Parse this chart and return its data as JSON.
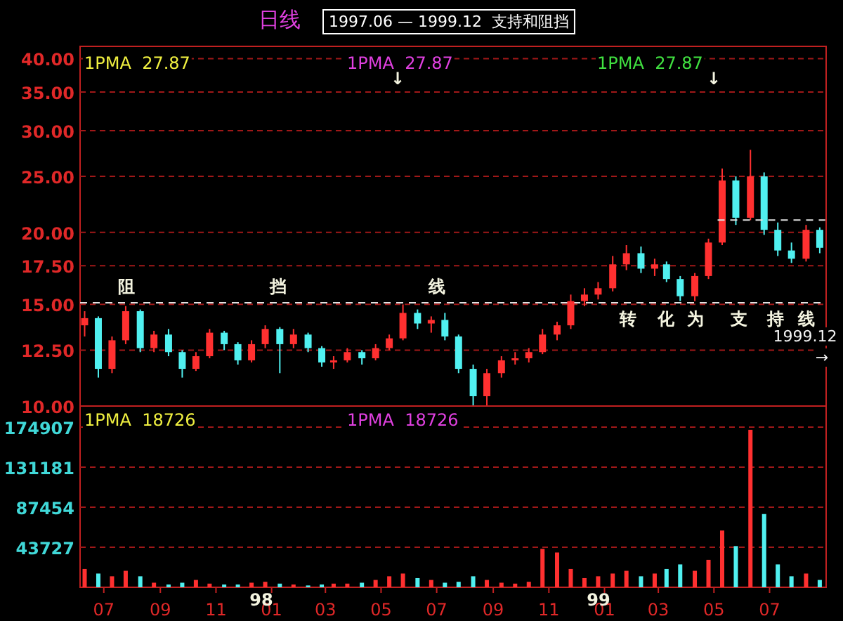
{
  "chart_data": [
    {
      "type": "candlestick",
      "title": "1997.06 — 1999.12  支持和阻挡",
      "subtitle": "日线",
      "x": [
        "1997-06-10",
        "1997-06-25",
        "1997-07-10",
        "1997-07-25",
        "1997-08-10",
        "1997-08-25",
        "1997-09-10",
        "1997-09-25",
        "1997-10-10",
        "1997-10-25",
        "1997-11-10",
        "1997-11-25",
        "1997-12-10",
        "1997-12-25",
        "1998-01-10",
        "1998-01-25",
        "1998-02-10",
        "1998-02-25",
        "1998-03-10",
        "1998-03-25",
        "1998-04-10",
        "1998-04-25",
        "1998-05-10",
        "1998-05-25",
        "1998-06-10",
        "1998-06-25",
        "1998-07-10",
        "1998-07-25",
        "1998-08-10",
        "1998-08-25",
        "1998-09-10",
        "1998-09-25",
        "1998-10-10",
        "1998-10-25",
        "1998-11-10",
        "1998-11-25",
        "1998-12-10",
        "1998-12-25",
        "1999-01-10",
        "1999-01-25",
        "1999-02-10",
        "1999-02-25",
        "1999-03-10",
        "1999-03-25",
        "1999-04-10",
        "1999-04-25",
        "1999-05-10",
        "1999-05-25",
        "1999-06-10",
        "1999-06-25",
        "1999-07-10",
        "1999-07-25",
        "1999-08-10",
        "1999-08-25"
      ],
      "ohlc": [
        [
          13.8,
          14.6,
          13.2,
          14.2
        ],
        [
          14.2,
          14.3,
          11.2,
          11.6
        ],
        [
          11.6,
          13.2,
          11.4,
          13.0
        ],
        [
          13.0,
          14.9,
          12.8,
          14.6
        ],
        [
          14.6,
          14.7,
          12.4,
          12.6
        ],
        [
          12.6,
          13.5,
          12.4,
          13.3
        ],
        [
          13.3,
          13.6,
          12.2,
          12.4
        ],
        [
          12.4,
          12.5,
          11.2,
          11.6
        ],
        [
          11.6,
          12.4,
          11.5,
          12.2
        ],
        [
          12.2,
          13.6,
          12.1,
          13.4
        ],
        [
          13.4,
          13.5,
          12.5,
          12.8
        ],
        [
          12.8,
          12.9,
          11.8,
          12.0
        ],
        [
          12.0,
          13.0,
          11.9,
          12.8
        ],
        [
          12.8,
          13.8,
          12.6,
          13.6
        ],
        [
          13.6,
          13.7,
          11.4,
          12.8
        ],
        [
          12.8,
          13.6,
          12.6,
          13.3
        ],
        [
          13.3,
          13.4,
          12.4,
          12.6
        ],
        [
          12.6,
          12.7,
          11.7,
          11.9
        ],
        [
          11.9,
          12.2,
          11.6,
          12.0
        ],
        [
          12.0,
          12.6,
          11.9,
          12.4
        ],
        [
          12.4,
          12.5,
          11.8,
          12.1
        ],
        [
          12.1,
          12.8,
          12.0,
          12.6
        ],
        [
          12.6,
          13.3,
          12.5,
          13.1
        ],
        [
          13.1,
          15.0,
          13.0,
          14.5
        ],
        [
          14.5,
          14.7,
          13.6,
          13.9
        ],
        [
          13.9,
          14.3,
          13.4,
          14.1
        ],
        [
          14.1,
          14.5,
          13.0,
          13.2
        ],
        [
          13.2,
          13.3,
          11.4,
          11.6
        ],
        [
          11.6,
          11.8,
          10.0,
          10.4
        ],
        [
          10.4,
          11.6,
          10.0,
          11.4
        ],
        [
          11.4,
          12.2,
          11.2,
          12.0
        ],
        [
          12.0,
          12.4,
          11.8,
          12.1
        ],
        [
          12.1,
          12.6,
          11.9,
          12.4
        ],
        [
          12.4,
          13.6,
          12.3,
          13.3
        ],
        [
          13.3,
          14.0,
          13.0,
          13.8
        ],
        [
          13.8,
          15.6,
          13.6,
          15.2
        ],
        [
          15.2,
          16.0,
          14.9,
          15.6
        ],
        [
          15.6,
          16.4,
          15.3,
          16.0
        ],
        [
          16.0,
          18.2,
          15.8,
          17.6
        ],
        [
          17.6,
          19.0,
          17.2,
          18.4
        ],
        [
          18.4,
          18.9,
          17.0,
          17.3
        ],
        [
          17.3,
          18.0,
          16.8,
          17.6
        ],
        [
          17.6,
          17.8,
          16.4,
          16.6
        ],
        [
          16.6,
          16.8,
          15.2,
          15.5
        ],
        [
          15.5,
          17.0,
          15.2,
          16.8
        ],
        [
          16.8,
          19.5,
          16.6,
          19.2
        ],
        [
          19.2,
          25.8,
          19.0,
          24.6
        ],
        [
          24.6,
          25.0,
          20.6,
          21.2
        ],
        [
          21.2,
          27.8,
          21.0,
          25.0
        ],
        [
          25.0,
          25.4,
          19.8,
          20.2
        ],
        [
          20.2,
          20.8,
          18.2,
          18.6
        ],
        [
          18.6,
          19.2,
          17.7,
          18.0
        ],
        [
          18.0,
          20.6,
          17.8,
          20.2
        ],
        [
          20.2,
          20.4,
          18.4,
          18.8
        ]
      ],
      "colors": [
        "#ff3030",
        "#50f0f0",
        "#ff3030",
        "#ff3030",
        "#50f0f0",
        "#ff3030",
        "#50f0f0",
        "#50f0f0",
        "#ff3030",
        "#ff3030",
        "#50f0f0",
        "#50f0f0",
        "#ff3030",
        "#ff3030",
        "#50f0f0",
        "#ff3030",
        "#50f0f0",
        "#50f0f0",
        "#ff3030",
        "#ff3030",
        "#50f0f0",
        "#ff3030",
        "#ff3030",
        "#ff3030",
        "#50f0f0",
        "#ff3030",
        "#50f0f0",
        "#50f0f0",
        "#50f0f0",
        "#ff3030",
        "#ff3030",
        "#ff3030",
        "#ff3030",
        "#ff3030",
        "#ff3030",
        "#ff3030",
        "#ff3030",
        "#ff3030",
        "#ff3030",
        "#ff3030",
        "#50f0f0",
        "#ff3030",
        "#50f0f0",
        "#50f0f0",
        "#ff3030",
        "#ff3030",
        "#ff3030",
        "#50f0f0",
        "#ff3030",
        "#50f0f0",
        "#50f0f0",
        "#50f0f0",
        "#ff3030",
        "#50f0f0"
      ],
      "series": [
        {
          "type": "line",
          "x": [
            "1999-05-05",
            "1999-08-31"
          ],
          "values": [
            21,
            21
          ],
          "color": "#e0e0e0",
          "line_style": "dashed"
        }
      ],
      "xlim": [
        "1997-06-05",
        "1999-09-01"
      ],
      "ylim": [
        10,
        42
      ],
      "log": "y",
      "grid": "y",
      "tick_labels": "y",
      "yticks": [
        {
          "value": 10,
          "label": "10.00"
        },
        {
          "value": 12.5,
          "label": "12.50"
        },
        {
          "value": 15,
          "label": "15.00"
        },
        {
          "value": 17.5,
          "label": "17.50"
        },
        {
          "value": 20,
          "label": "20.00"
        },
        {
          "value": 25,
          "label": "25.00"
        },
        {
          "value": 30,
          "label": "30.00"
        },
        {
          "value": 35,
          "label": "35.00"
        },
        {
          "value": 40,
          "label": "40.00"
        }
      ],
      "ref_lines": [
        {
          "axis": "y",
          "value": 15.1,
          "color": "#e0e0e0",
          "line_style": "dashed"
        }
      ],
      "annotations": [
        "1PMA  27.87",
        "1PMA  27.87",
        "1PMA  27.87",
        "阻",
        "挡",
        "线",
        "转",
        "化",
        "为",
        "支",
        "持",
        "线",
        "1999.12",
        "→",
        "↓",
        "↓"
      ]
    },
    {
      "type": "bar",
      "x": [
        "1997-06-10",
        "1997-06-25",
        "1997-07-10",
        "1997-07-25",
        "1997-08-10",
        "1997-08-25",
        "1997-09-10",
        "1997-09-25",
        "1997-10-10",
        "1997-10-25",
        "1997-11-10",
        "1997-11-25",
        "1997-12-10",
        "1997-12-25",
        "1998-01-10",
        "1998-01-25",
        "1998-02-10",
        "1998-02-25",
        "1998-03-10",
        "1998-03-25",
        "1998-04-10",
        "1998-04-25",
        "1998-05-10",
        "1998-05-25",
        "1998-06-10",
        "1998-06-25",
        "1998-07-10",
        "1998-07-25",
        "1998-08-10",
        "1998-08-25",
        "1998-09-10",
        "1998-09-25",
        "1998-10-10",
        "1998-10-25",
        "1998-11-10",
        "1998-11-25",
        "1998-12-10",
        "1998-12-25",
        "1999-01-10",
        "1999-01-25",
        "1999-02-10",
        "1999-02-25",
        "1999-03-10",
        "1999-03-25",
        "1999-04-10",
        "1999-04-25",
        "1999-05-10",
        "1999-05-25",
        "1999-06-10",
        "1999-06-25",
        "1999-07-10",
        "1999-07-25",
        "1999-08-10",
        "1999-08-25"
      ],
      "values": [
        20000,
        15000,
        12000,
        18000,
        12000,
        5000,
        3000,
        5000,
        8000,
        4000,
        3000,
        3000,
        5000,
        6000,
        4000,
        3000,
        2000,
        3000,
        4000,
        4000,
        5000,
        8000,
        12000,
        15000,
        10000,
        8000,
        5000,
        6000,
        12000,
        8000,
        5000,
        4000,
        6000,
        42000,
        38000,
        20000,
        10000,
        12000,
        15000,
        18000,
        12000,
        15000,
        20000,
        25000,
        18000,
        30000,
        62000,
        45000,
        172000,
        80000,
        25000,
        12000,
        15000,
        8000
      ],
      "colors": [
        "#ff3030",
        "#50f0f0",
        "#ff3030",
        "#ff3030",
        "#50f0f0",
        "#ff3030",
        "#50f0f0",
        "#50f0f0",
        "#ff3030",
        "#ff3030",
        "#50f0f0",
        "#50f0f0",
        "#ff3030",
        "#ff3030",
        "#50f0f0",
        "#ff3030",
        "#50f0f0",
        "#50f0f0",
        "#ff3030",
        "#ff3030",
        "#50f0f0",
        "#ff3030",
        "#ff3030",
        "#ff3030",
        "#50f0f0",
        "#ff3030",
        "#50f0f0",
        "#50f0f0",
        "#50f0f0",
        "#ff3030",
        "#ff3030",
        "#ff3030",
        "#ff3030",
        "#ff3030",
        "#ff3030",
        "#ff3030",
        "#ff3030",
        "#ff3030",
        "#ff3030",
        "#ff3030",
        "#50f0f0",
        "#ff3030",
        "#50f0f0",
        "#50f0f0",
        "#ff3030",
        "#ff3030",
        "#ff3030",
        "#50f0f0",
        "#ff3030",
        "#50f0f0",
        "#50f0f0",
        "#50f0f0",
        "#ff3030",
        "#50f0f0"
      ],
      "xlim": [
        "1997-06-05",
        "1999-09-01"
      ],
      "ylim": [
        0,
        198000
      ],
      "grid": "y",
      "yticks": [
        43727,
        87454,
        131181,
        174907
      ],
      "xticks": [
        {
          "value": "1997-07-01",
          "label": "07"
        },
        {
          "value": "1997-09-01",
          "label": "09"
        },
        {
          "value": "1997-11-01",
          "label": "11"
        },
        {
          "value": "1998-01-01",
          "label": "01"
        },
        {
          "value": "1998-03-01",
          "label": "03"
        },
        {
          "value": "1998-05-01",
          "label": "05"
        },
        {
          "value": "1998-07-01",
          "label": "07"
        },
        {
          "value": "1998-09-01",
          "label": "09"
        },
        {
          "value": "1998-11-01",
          "label": "11"
        },
        {
          "value": "1999-01-01",
          "label": "01"
        },
        {
          "value": "1999-03-01",
          "label": "03"
        },
        {
          "value": "1999-05-01",
          "label": "05"
        },
        {
          "value": "1999-07-01",
          "label": "07"
        }
      ],
      "annotations": [
        "1PMA  18726",
        "1PMA  18726",
        "98",
        "99"
      ]
    }
  ]
}
